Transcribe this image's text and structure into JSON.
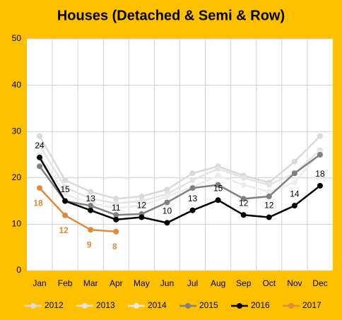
{
  "chart_data": {
    "type": "line",
    "title": "Houses (Detached & Semi & Row)",
    "categories": [
      "Jan",
      "Feb",
      "Mar",
      "Apr",
      "May",
      "Jun",
      "Jul",
      "Aug",
      "Sep",
      "Oct",
      "Nov",
      "Dec"
    ],
    "ylim": [
      0,
      50
    ],
    "yticks": [
      0,
      10,
      20,
      30,
      40,
      50
    ],
    "grid": true,
    "legend": "bottom",
    "series": [
      {
        "name": "2012",
        "color": "#d9d9d9",
        "values": [
          29,
          19.5,
          17,
          15.5,
          16,
          17.5,
          21,
          22.5,
          20.5,
          19,
          23.5,
          29
        ]
      },
      {
        "name": "2013",
        "color": "#e3e3e3",
        "values": [
          27,
          18,
          15.5,
          14.5,
          15,
          16.5,
          19.5,
          22,
          20,
          18.5,
          21,
          26
        ]
      },
      {
        "name": "2014",
        "color": "#ececec",
        "values": [
          25,
          16.5,
          14.5,
          13.5,
          14,
          16,
          18,
          20.5,
          18.5,
          17,
          19,
          25.5
        ]
      },
      {
        "name": "2015",
        "color": "#808080",
        "values": [
          22.5,
          15,
          14,
          12,
          12.2,
          14.7,
          17.8,
          18.5,
          15.5,
          16,
          21,
          25
        ]
      },
      {
        "name": "2016",
        "color": "#000000",
        "values": [
          24.4,
          15,
          13,
          11,
          11.5,
          10.3,
          13,
          15.2,
          12,
          11.5,
          14,
          18.3
        ],
        "value_labels": [
          "24",
          "15",
          "13",
          "11",
          "12",
          "10",
          "13",
          "15",
          "12",
          "12",
          "14",
          "18"
        ]
      },
      {
        "name": "2017",
        "color": "#e08a3c",
        "values": [
          17.8,
          11.9,
          8.8,
          8.4,
          null,
          null,
          null,
          null,
          null,
          null,
          null,
          null
        ],
        "value_labels": [
          "18",
          "12",
          "9",
          "8",
          null,
          null,
          null,
          null,
          null,
          null,
          null,
          null
        ]
      }
    ]
  }
}
